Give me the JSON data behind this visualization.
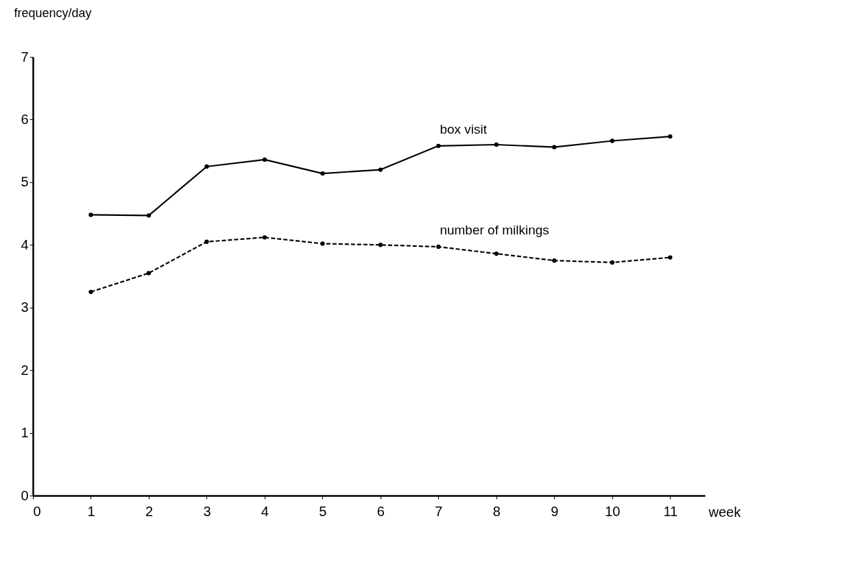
{
  "chart_data": {
    "type": "line",
    "xlabel": "week",
    "ylabel": "frequency/day",
    "x": [
      1,
      2,
      3,
      4,
      5,
      6,
      7,
      8,
      9,
      10,
      11
    ],
    "series": [
      {
        "name": "box visit",
        "color": "#000000",
        "line_style": "solid",
        "values": [
          4.48,
          4.47,
          5.25,
          5.36,
          5.14,
          5.2,
          5.58,
          5.6,
          5.56,
          5.66,
          5.73
        ]
      },
      {
        "name": "number of milkings",
        "color": "#000000",
        "line_style": "dashed",
        "values": [
          3.25,
          3.55,
          4.05,
          4.12,
          4.02,
          4.0,
          3.97,
          3.86,
          3.75,
          3.72,
          3.8
        ]
      }
    ],
    "xlim": [
      0,
      11.6
    ],
    "xticks": [
      0,
      1,
      2,
      3,
      4,
      5,
      6,
      7,
      8,
      9,
      10,
      11
    ],
    "ylim": [
      0,
      7
    ],
    "yticks": [
      0,
      1,
      2,
      3,
      4,
      5,
      6,
      7
    ],
    "marker": "circle",
    "grid": false,
    "legend": false
  }
}
